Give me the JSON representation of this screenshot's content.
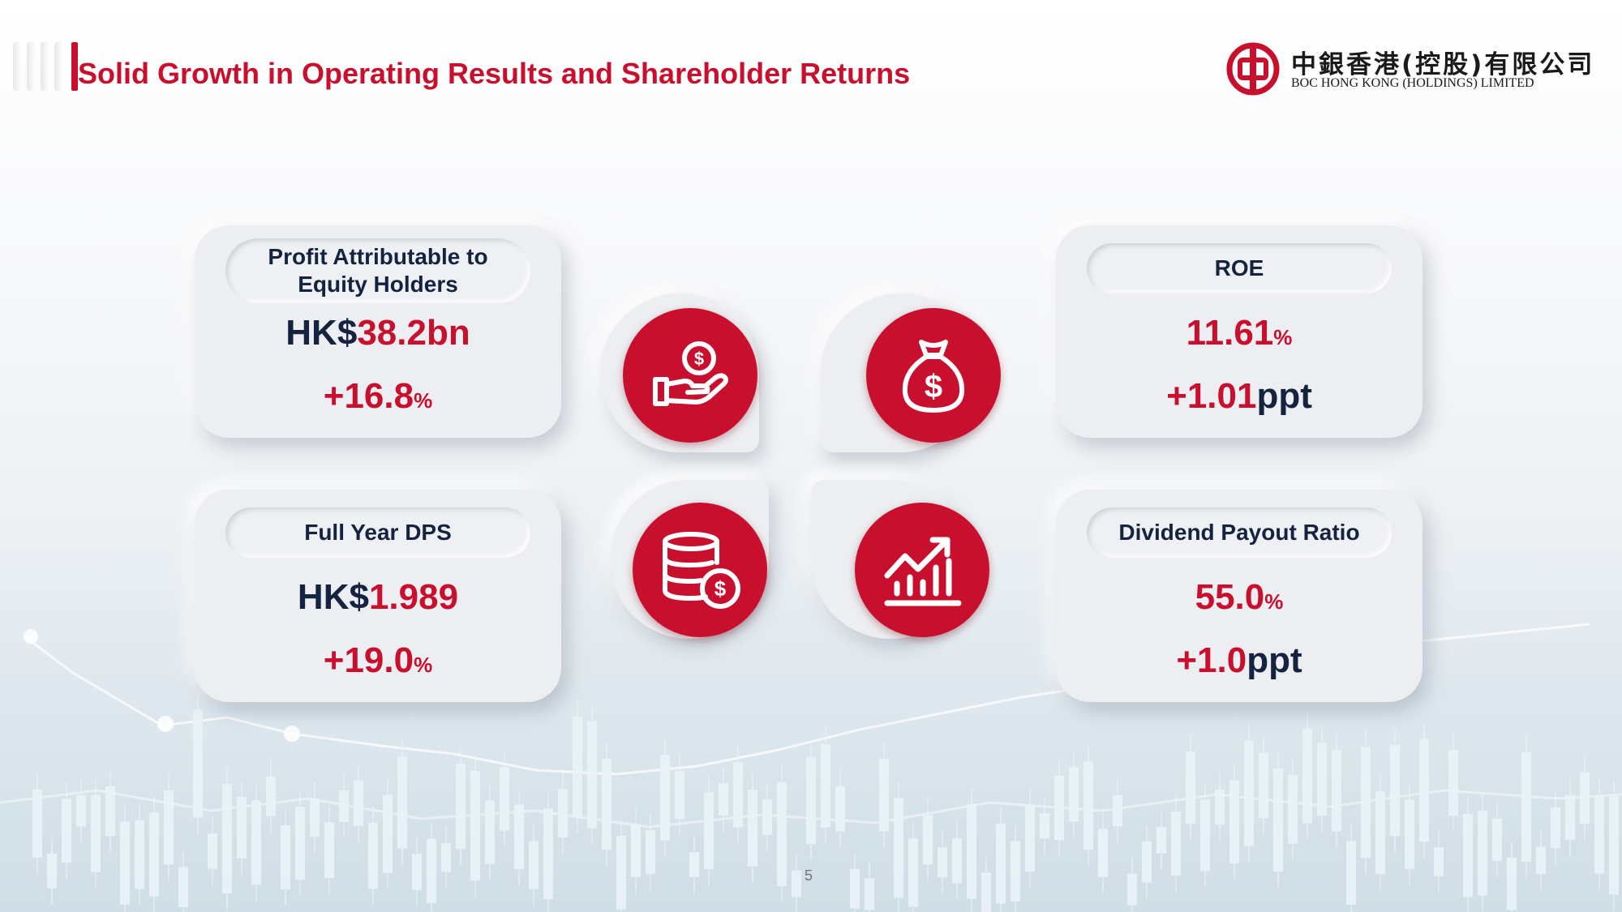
{
  "header": {
    "title": "Solid Growth in Operating Results and Shareholder Returns"
  },
  "logo": {
    "chinese_name": "中銀香港(控股)有限公司",
    "english_name": "BOC HONG KONG (HOLDINGS) LIMITED"
  },
  "colors": {
    "brand_red": "#c8102e",
    "navy": "#142340"
  },
  "cards": {
    "profit": {
      "label": "Profit Attributable to Equity Holders",
      "value_prefix": "HK$",
      "value": "38.2bn",
      "change": "+16.8",
      "change_unit": "%"
    },
    "roe": {
      "label": "ROE",
      "value": "11.61",
      "value_unit": "%",
      "change": "+1.01",
      "change_unit": "ppt"
    },
    "dps": {
      "label": "Full Year DPS",
      "value_prefix": "HK$",
      "value": "1.989",
      "change": "+19.0",
      "change_unit": "%"
    },
    "payout": {
      "label": "Dividend Payout Ratio",
      "value": "55.0",
      "value_unit": "%",
      "change": "+1.0",
      "change_unit": "ppt"
    }
  },
  "icons": {
    "top_left": "hand-coin-icon",
    "top_right": "money-bag-icon",
    "bottom_left": "coin-stack-icon",
    "bottom_right": "growth-chart-icon"
  },
  "footer": {
    "page_number": "5"
  }
}
